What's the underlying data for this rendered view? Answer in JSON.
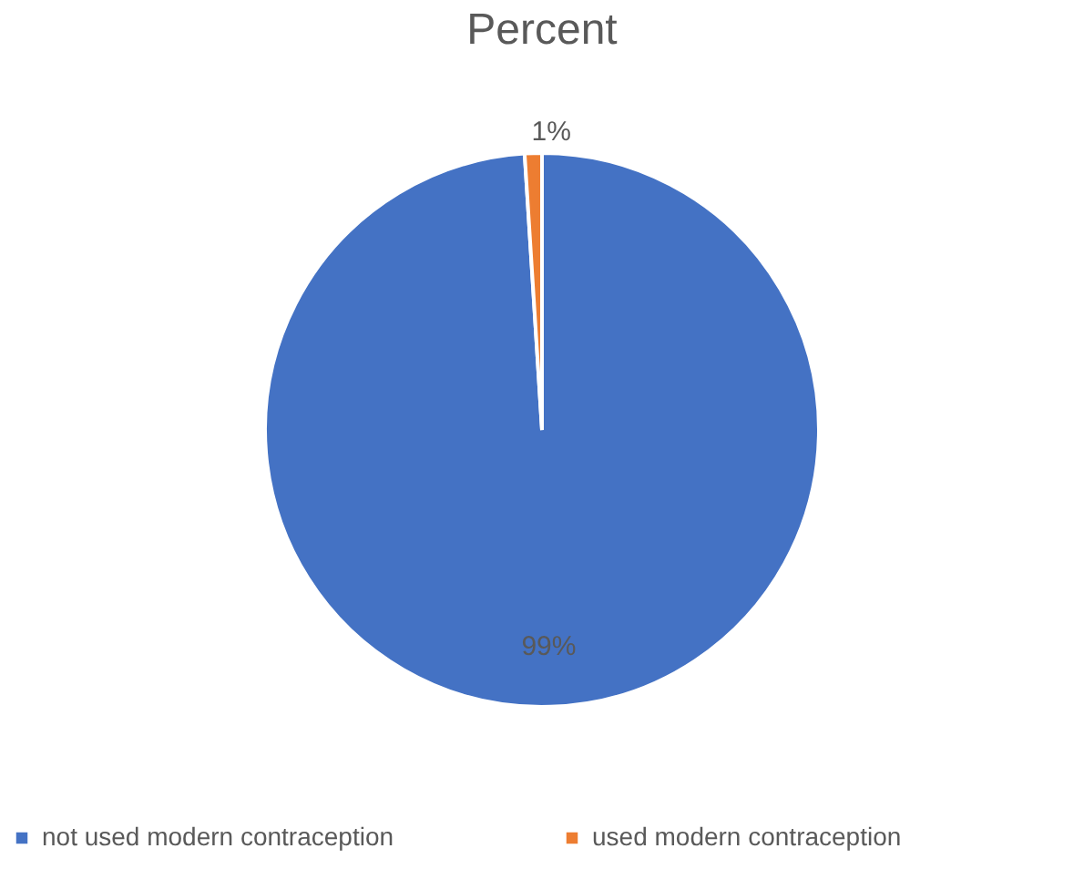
{
  "chart_data": {
    "type": "pie",
    "title": "Percent",
    "categories": [
      "not used modern contraception",
      "used modern contraception"
    ],
    "values": [
      99,
      1
    ],
    "colors": [
      "#4472c4",
      "#ed7d31"
    ],
    "value_labels": [
      "99%",
      "1%"
    ],
    "legend": "bottom"
  }
}
